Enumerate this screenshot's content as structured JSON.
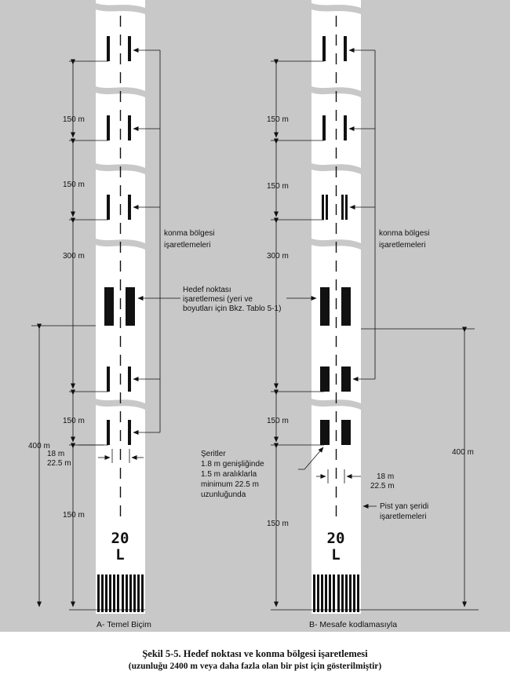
{
  "panel_a": {
    "title": "A- Temel Biçim",
    "dim_150_1": "150 m",
    "dim_150_2": "150 m",
    "dim_300": "300 m",
    "dim_150_3": "150 m",
    "dim_150_4": "150 m",
    "dim_400": "400 m",
    "dim_18": "18 m",
    "dim_22_5": "22.5 m",
    "tdz_label_line1": "konma bölgesi",
    "tdz_label_line2": "işaretlemeleri",
    "aim_label_line1": "Hedef noktası",
    "aim_label_line2": "işaretlemesi (yeri ve",
    "aim_label_line3": "boyutları için Bkz. Tablo 5-1)",
    "runway_number": "20",
    "runway_letter": "L"
  },
  "panel_b": {
    "title": "B- Mesafe kodlamasıyla",
    "dim_150_1": "150 m",
    "dim_150_2": "150 m",
    "dim_300": "300 m",
    "dim_150_3": "150 m",
    "dim_150_4": "150 m",
    "dim_400": "400 m",
    "dim_18": "18 m",
    "dim_22_5": "22.5 m",
    "tdz_label_line1": "konma bölgesi",
    "tdz_label_line2": "işaretlemeleri",
    "stripes_line1": "Şeritler",
    "stripes_line2": "1.8 m genişliğinde",
    "stripes_line3": "1.5 m aralıklarla",
    "stripes_line4": "minimum 22.5 m",
    "stripes_line5": "uzunluğunda",
    "side_label_line1": "Pist yan şeridi",
    "side_label_line2": "işaretlemeleri",
    "runway_number": "20",
    "runway_letter": "L"
  },
  "caption": {
    "line1": "Şekil 5-5. Hedef noktası ve konma bölgesi işaretlemesi",
    "line2": "(uzunluğu 2400 m veya daha fazla olan bir pist için gösterilmiştir)"
  }
}
